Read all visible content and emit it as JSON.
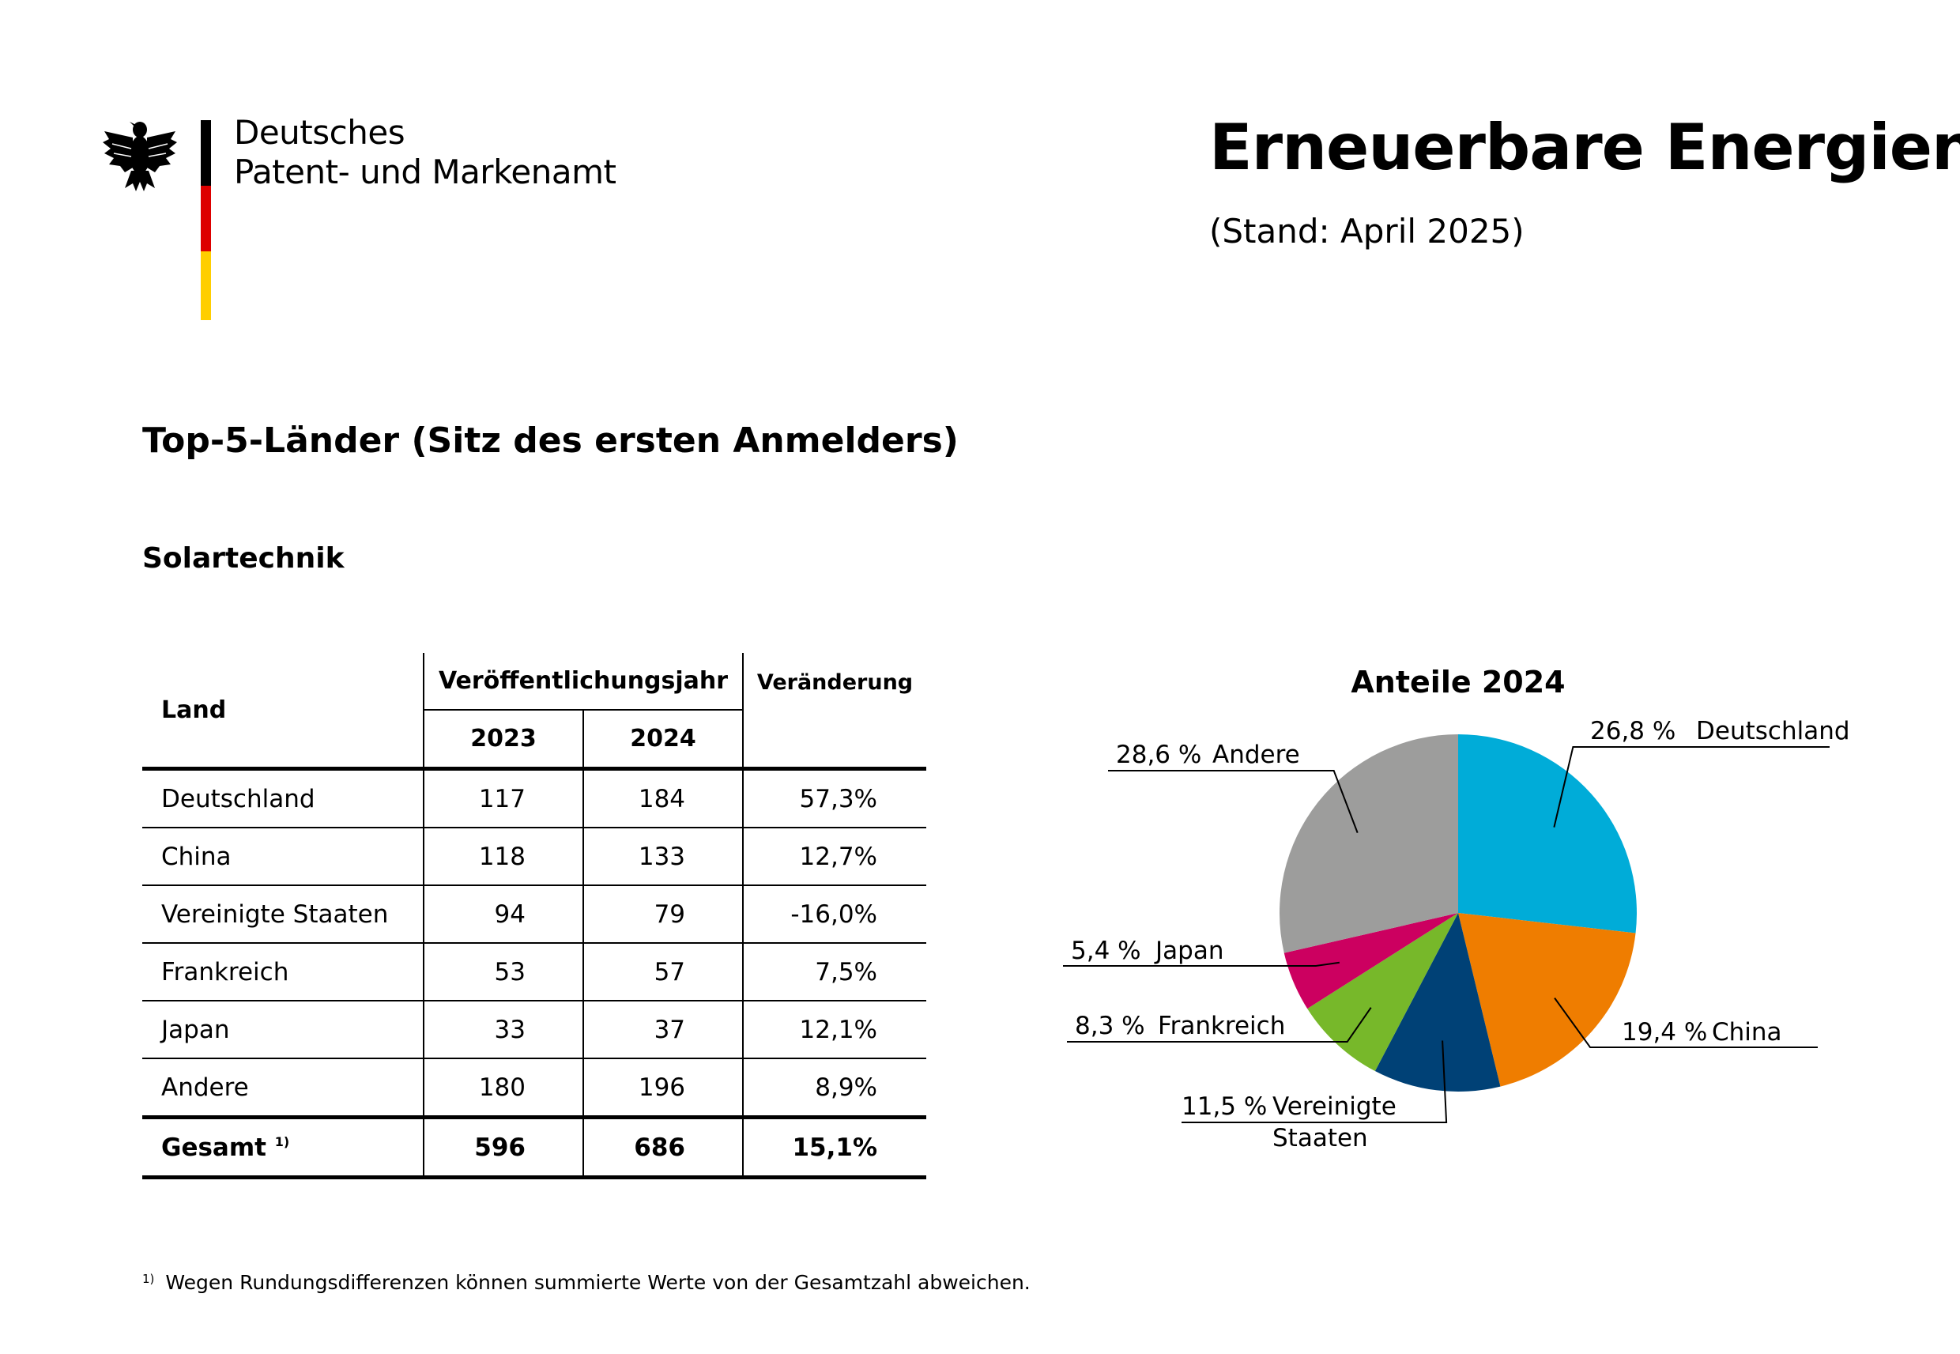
{
  "org": {
    "line1": "Deutsches",
    "line2": "Patent- und Markenamt",
    "flag_colors": [
      "#000000",
      "#dd0000",
      "#ffce00"
    ]
  },
  "header": {
    "title": "Erneuerbare Energien",
    "date": "(Stand: April 2025)"
  },
  "section_title": "Top-5-Länder (Sitz des ersten Anmelders)",
  "subsection_title": "Solartechnik",
  "table": {
    "headers": {
      "land": "Land",
      "group": "Veröffentlichungsjahr",
      "year1": "2023",
      "year2": "2024",
      "change": "Veränderung"
    },
    "rows": [
      {
        "land": "Deutschland",
        "y2023": "117",
        "y2024": "184",
        "change": "57,3%"
      },
      {
        "land": "China",
        "y2023": "118",
        "y2024": "133",
        "change": "12,7%"
      },
      {
        "land": "Vereinigte Staaten",
        "y2023": "94",
        "y2024": "79",
        "change": "-16,0%"
      },
      {
        "land": "Frankreich",
        "y2023": "53",
        "y2024": "57",
        "change": "7,5%"
      },
      {
        "land": "Japan",
        "y2023": "33",
        "y2024": "37",
        "change": "12,1%"
      },
      {
        "land": "Andere",
        "y2023": "180",
        "y2024": "196",
        "change": "8,9%"
      }
    ],
    "total": {
      "land": "Gesamt",
      "footnote_mark": "1)",
      "y2023": "596",
      "y2024": "686",
      "change": "15,1%"
    }
  },
  "footnote": {
    "mark": "1)",
    "text": "Wegen Rundungsdifferenzen können summierte Werte von der Gesamtzahl abweichen."
  },
  "chart_data": {
    "type": "pie",
    "title": "Anteile 2024",
    "slices": [
      {
        "name": "Deutschland",
        "value": 26.8,
        "label": "26,8 %",
        "color": "#00acd8"
      },
      {
        "name": "China",
        "value": 19.4,
        "label": "19,4 %",
        "color": "#ef7d00"
      },
      {
        "name": "Vereinigte Staaten",
        "name_lines": [
          "Vereinigte",
          "Staaten"
        ],
        "value": 11.5,
        "label": "11,5 %",
        "color": "#004176"
      },
      {
        "name": "Frankreich",
        "value": 8.3,
        "label": "8,3 %",
        "color": "#77b82a"
      },
      {
        "name": "Japan",
        "value": 5.4,
        "label": "5,4 %",
        "color": "#cc0060"
      },
      {
        "name": "Andere",
        "value": 28.6,
        "label": "28,6 %",
        "color": "#9d9d9c"
      }
    ]
  }
}
